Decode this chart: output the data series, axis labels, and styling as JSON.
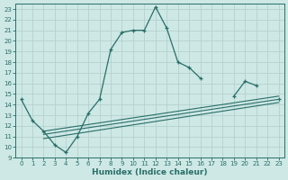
{
  "xlabel": "Humidex (Indice chaleur)",
  "xlim": [
    -0.5,
    23.5
  ],
  "ylim": [
    9,
    23.5
  ],
  "yticks": [
    9,
    10,
    11,
    12,
    13,
    14,
    15,
    16,
    17,
    18,
    19,
    20,
    21,
    22,
    23
  ],
  "xticks": [
    0,
    1,
    2,
    3,
    4,
    5,
    6,
    7,
    8,
    9,
    10,
    11,
    12,
    13,
    14,
    15,
    16,
    17,
    18,
    19,
    20,
    21,
    22,
    23
  ],
  "bg_color": "#cde8e5",
  "line_color": "#2a6e68",
  "grid_color": "#b0ceca",
  "main_line_x": [
    0,
    1,
    2,
    3,
    4,
    5,
    6,
    7,
    8,
    9,
    10,
    11,
    12,
    13,
    14,
    15,
    16,
    17,
    18,
    19,
    20,
    21,
    22,
    23
  ],
  "main_line_y": [
    14.5,
    12.5,
    11.5,
    10.2,
    9.5,
    11.0,
    13.2,
    14.5,
    19.2,
    20.8,
    21.0,
    21.0,
    23.2,
    21.2,
    18.0,
    17.5,
    16.5,
    null,
    null,
    14.8,
    16.2,
    15.8,
    null,
    14.5
  ],
  "line2_x": [
    2,
    23
  ],
  "line2_y": [
    11.5,
    14.8
  ],
  "line3_x": [
    2,
    23
  ],
  "line3_y": [
    11.2,
    14.5
  ],
  "line4_x": [
    2,
    23
  ],
  "line4_y": [
    10.8,
    14.2
  ]
}
